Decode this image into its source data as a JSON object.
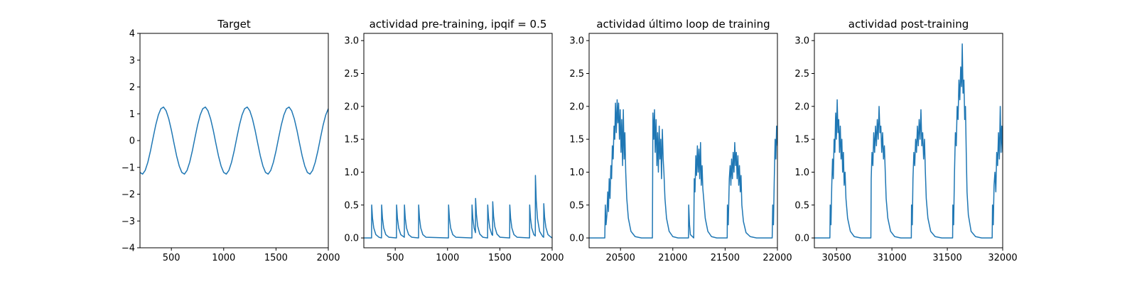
{
  "chart_data": [
    {
      "type": "line",
      "title": "Target",
      "color": "#1f77b4",
      "x": [
        200,
        225,
        250,
        275,
        300,
        325,
        350,
        375,
        400,
        425,
        450,
        475,
        500,
        525,
        550,
        575,
        600,
        625,
        650,
        675,
        700,
        725,
        750,
        775,
        800,
        825,
        850,
        875,
        900,
        925,
        950,
        975,
        1000,
        1025,
        1050,
        1075,
        1100,
        1125,
        1150,
        1175,
        1200,
        1225,
        1250,
        1275,
        1300,
        1325,
        1350,
        1375,
        1400,
        1425,
        1450,
        1475,
        1500,
        1525,
        1550,
        1575,
        1600,
        1625,
        1650,
        1675,
        1700,
        1725,
        1750,
        1775,
        1800,
        1825,
        1850,
        1875,
        1900,
        1925,
        1950,
        1975,
        2000
      ],
      "values": [
        -1.19,
        -1.25,
        -1.11,
        -0.81,
        -0.39,
        0.1,
        0.57,
        0.95,
        1.19,
        1.25,
        1.11,
        0.81,
        0.39,
        -0.1,
        -0.57,
        -0.95,
        -1.19,
        -1.25,
        -1.11,
        -0.81,
        -0.39,
        0.1,
        0.57,
        0.95,
        1.19,
        1.25,
        1.11,
        0.81,
        0.39,
        -0.1,
        -0.57,
        -0.95,
        -1.19,
        -1.25,
        -1.11,
        -0.81,
        -0.39,
        0.1,
        0.57,
        0.95,
        1.19,
        1.25,
        1.11,
        0.81,
        0.39,
        -0.1,
        -0.57,
        -0.95,
        -1.19,
        -1.25,
        -1.11,
        -0.81,
        -0.39,
        0.1,
        0.57,
        0.95,
        1.19,
        1.25,
        1.11,
        0.81,
        0.39,
        -0.1,
        -0.57,
        -0.95,
        -1.19,
        -1.25,
        -1.11,
        -0.81,
        -0.39,
        0.1,
        0.57,
        0.95,
        1.19
      ],
      "xlim": [
        200,
        2000
      ],
      "xticks": [
        500,
        1000,
        1500,
        2000
      ],
      "ylim": [
        -4,
        4
      ],
      "yticks": [
        {
          "value": -4,
          "label": "−4"
        },
        {
          "value": -3,
          "label": "−3"
        },
        {
          "value": -2,
          "label": "−2"
        },
        {
          "value": -1,
          "label": "−1"
        },
        0,
        1,
        2,
        3,
        4
      ]
    },
    {
      "type": "line",
      "title": "actividad pre-training, ipqif = 0.5",
      "color": "#1f77b4",
      "x": [
        200,
        274,
        275,
        283,
        295,
        315,
        345,
        369,
        370,
        378,
        390,
        410,
        440,
        512,
        513,
        521,
        533,
        553,
        587,
        588,
        596,
        608,
        628,
        658,
        723,
        724,
        732,
        744,
        764,
        794,
        1009,
        1010,
        1018,
        1030,
        1050,
        1080,
        1233,
        1234,
        1242,
        1254,
        1267,
        1268,
        1276,
        1288,
        1308,
        1338,
        1383,
        1384,
        1392,
        1404,
        1424,
        1431,
        1432,
        1440,
        1452,
        1472,
        1502,
        1594,
        1595,
        1603,
        1615,
        1635,
        1665,
        1784,
        1785,
        1793,
        1805,
        1825,
        1839,
        1840,
        1848,
        1860,
        1880,
        1910,
        1919,
        1920,
        1928,
        1940,
        1960,
        1990,
        2000
      ],
      "values": [
        0,
        0,
        0.5,
        0.3,
        0.15,
        0.05,
        0.01,
        0,
        0.5,
        0.3,
        0.15,
        0.05,
        0.01,
        0,
        0.5,
        0.3,
        0.15,
        0.05,
        0.01,
        0.5,
        0.3,
        0.15,
        0.05,
        0.01,
        0,
        0.5,
        0.3,
        0.15,
        0.05,
        0.01,
        0,
        0.5,
        0.3,
        0.15,
        0.05,
        0.01,
        0,
        0.5,
        0.3,
        0.15,
        0.08,
        0.6,
        0.36,
        0.18,
        0.06,
        0.01,
        0,
        0.5,
        0.3,
        0.15,
        0.05,
        0.04,
        0.55,
        0.33,
        0.17,
        0.06,
        0.01,
        0,
        0.5,
        0.3,
        0.15,
        0.05,
        0.01,
        0,
        0.5,
        0.3,
        0.15,
        0.05,
        0.03,
        0.95,
        0.57,
        0.29,
        0.1,
        0.02,
        0.01,
        0.52,
        0.31,
        0.16,
        0.05,
        0.01,
        0
      ],
      "xlim": [
        200,
        2000
      ],
      "xticks": [
        500,
        1000,
        1500,
        2000
      ],
      "ylim": [
        -0.15,
        3.11
      ],
      "yticks": [
        {
          "value": 0,
          "label": "0.0"
        },
        0.5,
        {
          "value": 1,
          "label": "1.0"
        },
        1.5,
        {
          "value": 2,
          "label": "2.0"
        },
        2.5,
        {
          "value": 3,
          "label": "3.0"
        }
      ]
    },
    {
      "type": "line",
      "title": "actividad último loop de training",
      "color": "#1f77b4",
      "x": [
        20200,
        20350,
        20355,
        20362,
        20370,
        20378,
        20385,
        20392,
        20400,
        20408,
        20415,
        20422,
        20430,
        20438,
        20445,
        20452,
        20460,
        20468,
        20475,
        20482,
        20490,
        20497,
        20505,
        20512,
        20520,
        20527,
        20535,
        20542,
        20550,
        20560,
        20575,
        20600,
        20640,
        20700,
        20805,
        20810,
        20818,
        20825,
        20832,
        20840,
        20848,
        20855,
        20862,
        20870,
        20877,
        20885,
        20892,
        20900,
        20908,
        20915,
        20925,
        20940,
        20965,
        21000,
        21050,
        21150,
        21152,
        21160,
        21168,
        21200,
        21205,
        21212,
        21220,
        21227,
        21235,
        21242,
        21250,
        21257,
        21265,
        21272,
        21280,
        21287,
        21295,
        21310,
        21335,
        21370,
        21420,
        21520,
        21522,
        21530,
        21540,
        21548,
        21555,
        21562,
        21570,
        21577,
        21585,
        21592,
        21600,
        21607,
        21615,
        21622,
        21630,
        21637,
        21645,
        21652,
        21660,
        21675,
        21700,
        21740,
        21800,
        21950,
        21955,
        21962,
        21970,
        21978,
        21985,
        21992,
        22000
      ],
      "values": [
        0,
        0,
        0.5,
        0.2,
        0.35,
        0.7,
        0.4,
        0.9,
        0.6,
        1.1,
        0.9,
        1.4,
        1.2,
        1.7,
        1.5,
        2.05,
        1.6,
        2.1,
        1.75,
        2.05,
        1.5,
        1.95,
        1.3,
        1.8,
        1.1,
        1.95,
        1.2,
        1.6,
        1.0,
        0.6,
        0.3,
        0.1,
        0.02,
        0,
        0,
        1.9,
        1.5,
        1.95,
        1.3,
        1.8,
        1.1,
        1.6,
        1.0,
        1.7,
        1.2,
        1.5,
        0.9,
        1.65,
        1.2,
        1.0,
        0.6,
        0.3,
        0.1,
        0.02,
        0,
        0,
        0.5,
        0.2,
        0.05,
        0,
        0.9,
        0.7,
        1.25,
        0.95,
        1.4,
        1.0,
        1.35,
        0.9,
        1.45,
        0.8,
        1.1,
        0.75,
        0.6,
        0.3,
        0.1,
        0.02,
        0,
        0,
        0.5,
        0.2,
        0.9,
        1.1,
        0.8,
        1.2,
        0.9,
        1.3,
        1.0,
        1.45,
        1.1,
        1.3,
        0.9,
        1.25,
        0.8,
        1.1,
        0.7,
        0.95,
        0.5,
        0.25,
        0.08,
        0.02,
        0,
        0,
        0.5,
        0.2,
        0.9,
        1.5,
        1.2,
        1.7,
        1.4
      ],
      "xlim": [
        20200,
        22000
      ],
      "xticks": [
        20500,
        21000,
        21500,
        22000
      ],
      "ylim": [
        -0.15,
        3.11
      ],
      "yticks": [
        {
          "value": 0,
          "label": "0.0"
        },
        0.5,
        {
          "value": 1,
          "label": "1.0"
        },
        1.5,
        {
          "value": 2,
          "label": "2.0"
        },
        2.5,
        {
          "value": 3,
          "label": "3.0"
        }
      ]
    },
    {
      "type": "line",
      "title": "actividad post-training",
      "color": "#1f77b4",
      "x": [
        30300,
        30440,
        30443,
        30450,
        30457,
        30464,
        30471,
        30478,
        30485,
        30492,
        30499,
        30506,
        30513,
        30520,
        30527,
        30534,
        30541,
        30548,
        30555,
        30562,
        30569,
        30577,
        30585,
        30600,
        30625,
        30660,
        30720,
        30810,
        30813,
        30820,
        30828,
        30836,
        30844,
        30852,
        30860,
        30868,
        30876,
        30884,
        30892,
        30900,
        30908,
        30916,
        30924,
        30932,
        30940,
        30948,
        30963,
        30988,
        31025,
        31080,
        31175,
        31177,
        31184,
        31190,
        31198,
        31206,
        31214,
        31222,
        31230,
        31238,
        31246,
        31254,
        31262,
        31270,
        31278,
        31286,
        31294,
        31302,
        31310,
        31325,
        31350,
        31390,
        31450,
        31548,
        31550,
        31557,
        31565,
        31573,
        31581,
        31589,
        31597,
        31605,
        31613,
        31621,
        31629,
        31635,
        31642,
        31650,
        31657,
        31664,
        31671,
        31678,
        31690,
        31715,
        31755,
        31810,
        31905,
        31908,
        31915,
        31922,
        31930,
        31938,
        31946,
        31954,
        31962,
        31970,
        31978,
        31985,
        31992,
        32000
      ],
      "values": [
        0,
        0,
        0.5,
        0.2,
        0.8,
        1.2,
        0.9,
        1.5,
        1.3,
        1.9,
        1.5,
        2.1,
        1.6,
        1.8,
        1.3,
        1.7,
        1.2,
        1.5,
        1.0,
        1.3,
        0.8,
        1.0,
        0.6,
        0.3,
        0.1,
        0.02,
        0,
        0,
        0.9,
        1.3,
        1.1,
        1.6,
        1.3,
        1.7,
        1.4,
        1.8,
        1.5,
        2.0,
        1.6,
        1.7,
        1.3,
        1.6,
        1.2,
        1.4,
        1.0,
        0.6,
        0.3,
        0.1,
        0.02,
        0,
        0,
        0.5,
        0.2,
        0.9,
        1.3,
        1.1,
        1.5,
        1.3,
        1.7,
        1.4,
        1.8,
        1.5,
        1.95,
        1.4,
        1.6,
        1.2,
        1.5,
        1.0,
        0.6,
        0.3,
        0.1,
        0.02,
        0,
        0,
        0.5,
        0.2,
        1.0,
        1.6,
        1.4,
        2.0,
        1.8,
        2.4,
        2.1,
        2.6,
        2.3,
        2.95,
        2.2,
        2.4,
        1.8,
        2.0,
        1.3,
        0.7,
        0.35,
        0.1,
        0.02,
        0,
        0,
        0.5,
        0.2,
        0.8,
        1.0,
        0.7,
        1.3,
        1.1,
        1.6,
        1.2,
        2.0,
        1.3,
        1.7,
        1.3
      ],
      "xlim": [
        30300,
        32000
      ],
      "xticks": [
        30500,
        31000,
        31500,
        32000
      ],
      "ylim": [
        -0.15,
        3.11
      ],
      "yticks": [
        {
          "value": 0,
          "label": "0.0"
        },
        0.5,
        {
          "value": 1,
          "label": "1.0"
        },
        1.5,
        {
          "value": 2,
          "label": "2.0"
        },
        2.5,
        {
          "value": 3,
          "label": "3.0"
        }
      ]
    }
  ]
}
